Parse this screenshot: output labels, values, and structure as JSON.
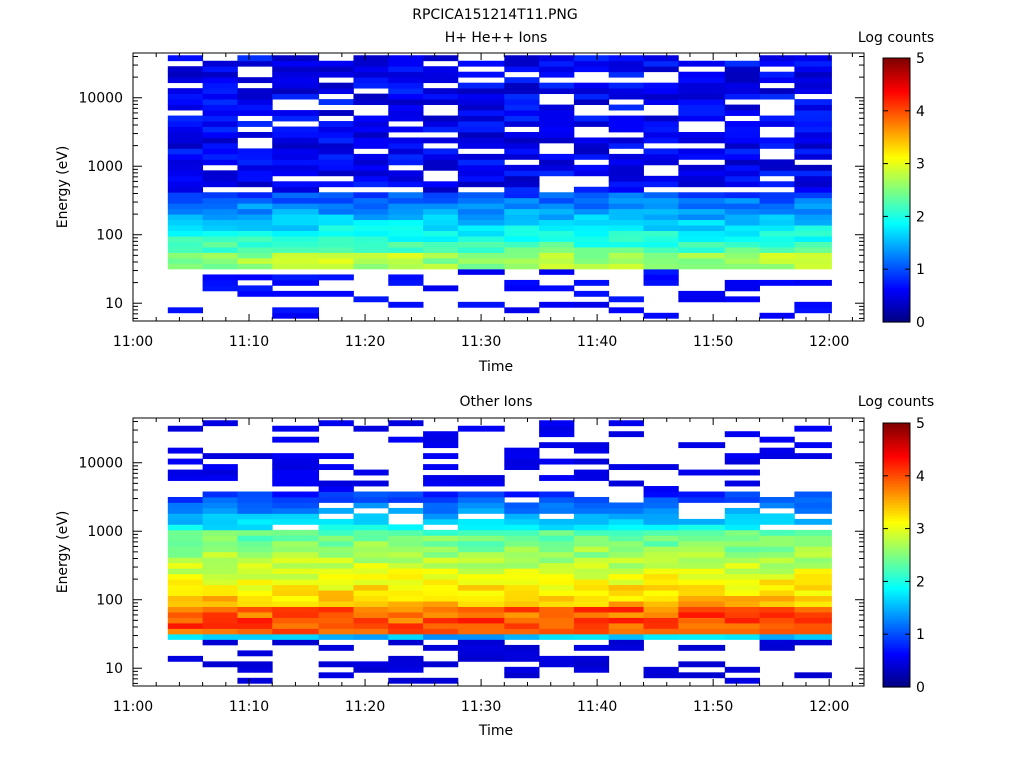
{
  "figure": {
    "title": "RPCICA151214T11.PNG"
  },
  "chart_data": [
    {
      "type": "heatmap",
      "title": "H+ He++ Ions",
      "xlabel": "Time",
      "ylabel": "Energy (eV)",
      "x_ticks": [
        "11:00",
        "11:10",
        "11:20",
        "11:30",
        "11:40",
        "11:50",
        "12:00"
      ],
      "x_range": [
        "11:00",
        "12:03"
      ],
      "y_scale": "log",
      "y_ticks": [
        "10",
        "100",
        "1000",
        "10000"
      ],
      "y_range": [
        5.5,
        45000
      ],
      "colorbar": {
        "label": "Log counts",
        "ticks": [
          "0",
          "1",
          "2",
          "3",
          "4",
          "5"
        ],
        "range": [
          0,
          5
        ]
      },
      "time_bins": [
        "11:03",
        "11:06",
        "11:09",
        "11:12",
        "11:16",
        "11:19",
        "11:22",
        "11:25",
        "11:28",
        "11:32",
        "11:35",
        "11:38",
        "11:41",
        "11:44",
        "11:47",
        "11:51",
        "11:54",
        "11:57"
      ],
      "energy_bins_eV": [
        5.5,
        45000
      ],
      "profile": {
        "peak_energy_eV": 50,
        "peak_log_counts": 2.7,
        "high_energy_floor_log_counts": 0.5,
        "cutoff_low_eV": 32,
        "note": "H+ counts peak near 40-60 eV"
      }
    },
    {
      "type": "heatmap",
      "title": "Other Ions",
      "xlabel": "Time",
      "ylabel": "Energy (eV)",
      "x_ticks": [
        "11:00",
        "11:10",
        "11:20",
        "11:30",
        "11:40",
        "11:50",
        "12:00"
      ],
      "x_range": [
        "11:00",
        "12:03"
      ],
      "y_scale": "log",
      "y_ticks": [
        "10",
        "100",
        "1000",
        "10000"
      ],
      "y_range": [
        5.5,
        45000
      ],
      "colorbar": {
        "label": "Log counts",
        "ticks": [
          "0",
          "1",
          "2",
          "3",
          "4",
          "5"
        ],
        "range": [
          0,
          5
        ]
      },
      "time_bins": [
        "11:03",
        "11:06",
        "11:09",
        "11:12",
        "11:16",
        "11:19",
        "11:22",
        "11:25",
        "11:28",
        "11:32",
        "11:35",
        "11:38",
        "11:41",
        "11:44",
        "11:47",
        "11:51",
        "11:54",
        "11:57"
      ],
      "profile": {
        "peak_energy_eV": 50,
        "peak_log_counts": 4.2,
        "mid_band_eV": [
          100,
          1000
        ],
        "mid_band_log_counts": 3.2,
        "cutoff_low_eV": 27
      }
    }
  ]
}
